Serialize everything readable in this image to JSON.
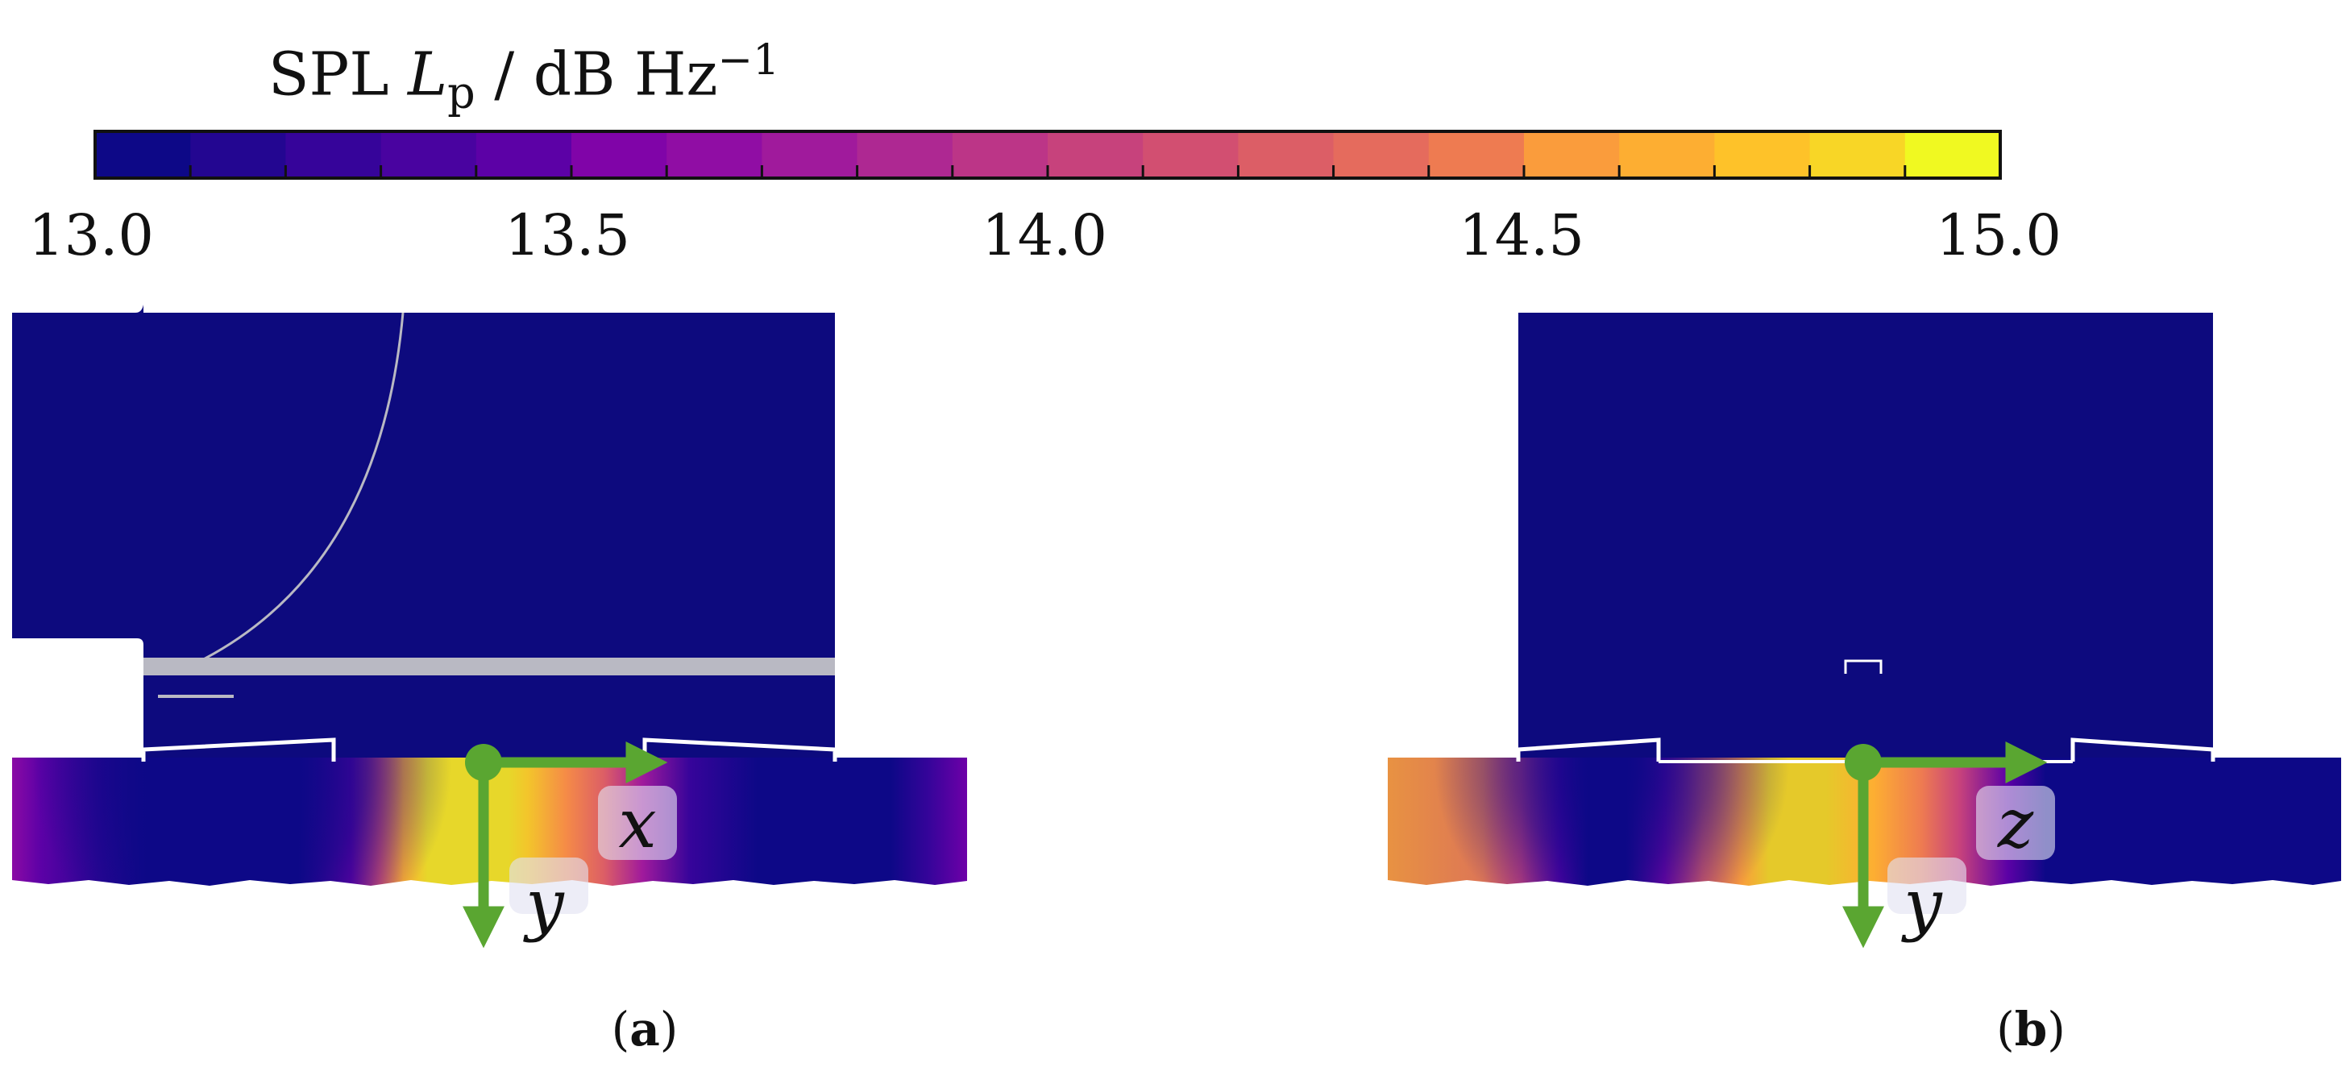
{
  "colorbar": {
    "title_quantity": "SPL",
    "title_symbol": "L",
    "title_subscript": "p",
    "title_unit": "/ dB Hz",
    "title_exponent": "−1",
    "range": [
      13.0,
      15.0
    ],
    "tick_labels": [
      "13.0",
      "13.5",
      "14.0",
      "14.5",
      "15.0"
    ],
    "levels": 20,
    "colors": [
      "#0d0887",
      "#230691",
      "#36049a",
      "#4903a0",
      "#5c01a6",
      "#6e00a8",
      "#8004a8",
      "#900da4",
      "#a01a9c",
      "#ae2892",
      "#bc3587",
      "#c7427c",
      "#d24f71",
      "#dc5e66",
      "#e56b5d",
      "#ee7b51",
      "#f58b47",
      "#fa9c3c",
      "#fdae32",
      "#fec229",
      "#f8d626",
      "#f0f921"
    ]
  },
  "panels": [
    {
      "caption": "a",
      "axis_horizontal": "x",
      "axis_vertical": "y"
    },
    {
      "caption": "b",
      "axis_horizontal": "z",
      "axis_vertical": "y"
    }
  ],
  "style": {
    "domain_color": "#0d0a7e",
    "axis_arrow_color": "#5aa631",
    "wall_color": "#ffffff",
    "probe_color": "#b9b9c3"
  }
}
